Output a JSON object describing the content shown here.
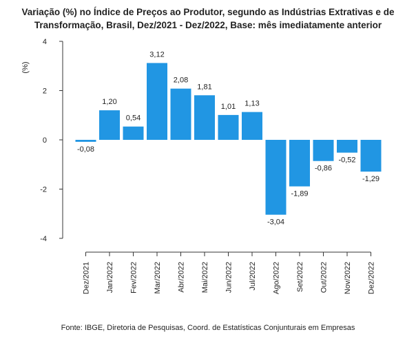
{
  "chart_data": {
    "type": "bar",
    "title_lines": [
      "Variação (%) no Índice de Preços ao Produtor, segundo as Indústrias Extrativas e de",
      "Transformação, Brasil, Dez/2021 - Dez/2022, Base: mês imediatamente anterior"
    ],
    "ylabel": "(%)",
    "xlabel": "",
    "ylim": [
      -4,
      4
    ],
    "yticks": [
      -4,
      -2,
      0,
      2,
      4
    ],
    "categories": [
      "Dez/2021",
      "Jan/2022",
      "Fev/2022",
      "Mar/2022",
      "Abr/2022",
      "Mai/2022",
      "Jun/2022",
      "Jul/2022",
      "Ago/2022",
      "Set/2022",
      "Out/2022",
      "Nov/2022",
      "Dez/2022"
    ],
    "values": [
      -0.08,
      1.2,
      0.54,
      3.12,
      2.08,
      1.81,
      1.01,
      1.13,
      -3.04,
      -1.89,
      -0.86,
      -0.52,
      -1.29
    ],
    "value_labels": [
      "-0,08",
      "1,20",
      "0,54",
      "3,12",
      "2,08",
      "1,81",
      "1,01",
      "1,13",
      "-3,04",
      "-1,89",
      "-0,86",
      "-0,52",
      "-1,29"
    ],
    "bar_color": "#2196E3",
    "grid": false
  },
  "source": "Fonte: IBGE, Diretoria de Pesquisas, Coord. de Estatísticas Conjunturais em Empresas"
}
